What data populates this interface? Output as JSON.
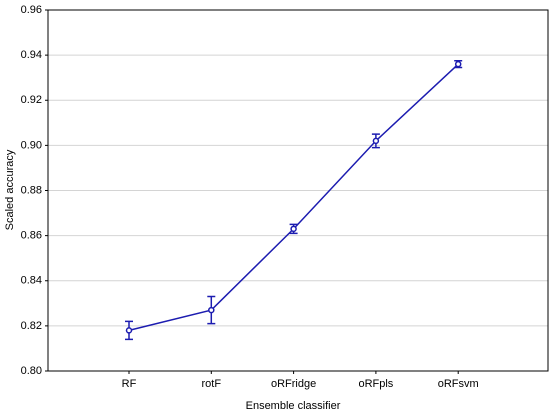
{
  "chart_data": {
    "type": "line",
    "x_label": "Ensemble classifier",
    "y_label": "Scaled accuracy",
    "categories": [
      "RF",
      "rotF",
      "oRFridge",
      "oRFpls",
      "oRFsvm"
    ],
    "series": [
      {
        "color": "#1c1cb0",
        "values": [
          0.818,
          0.827,
          0.863,
          0.902,
          0.936
        ],
        "errors": [
          0.004,
          0.006,
          0.002,
          0.003,
          0.0015
        ]
      }
    ],
    "ylim": [
      0.8,
      0.96
    ],
    "yticks": [
      {
        "value": 0.8,
        "label": "0.80"
      },
      0.82,
      0.84,
      0.86,
      0.88,
      {
        "value": 0.9,
        "label": "0.90"
      },
      0.92,
      0.94,
      0.96
    ],
    "grid": true
  }
}
